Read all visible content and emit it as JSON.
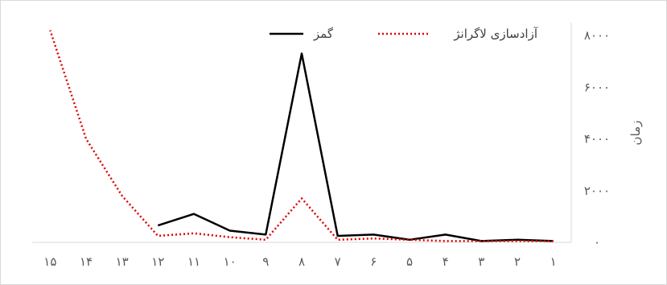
{
  "chart_data": {
    "type": "line",
    "x": [
      1,
      2,
      3,
      4,
      5,
      6,
      7,
      8,
      9,
      10,
      11,
      12,
      13,
      14,
      15
    ],
    "x_tick_labels": [
      "۱",
      "۲",
      "۳",
      "۴",
      "۵",
      "۶",
      "۷",
      "۸",
      "۹",
      "۱۰",
      "۱۱",
      "۱۲",
      "۱۳",
      "۱۴",
      "۱۵"
    ],
    "x_direction": "right-to-left",
    "series": [
      {
        "name": "گمز",
        "color": "#000000",
        "dash": "solid",
        "values": [
          50,
          100,
          50,
          300,
          100,
          300,
          250,
          7300,
          300,
          450,
          1100,
          650,
          null,
          null,
          null
        ]
      },
      {
        "name": "آزادسازی لاگرانژ",
        "color": "#e00000",
        "dash": "dotted",
        "values": [
          50,
          50,
          50,
          50,
          100,
          150,
          100,
          1700,
          100,
          200,
          350,
          250,
          1800,
          4000,
          8200
        ]
      }
    ],
    "ylabel": "زمان",
    "ylim": [
      0,
      8500
    ],
    "y_ticks": [
      0,
      2000,
      4000,
      6000,
      8000
    ],
    "y_tick_labels": [
      "۰",
      "۲۰۰۰",
      "۴۰۰۰",
      "۶۰۰۰",
      "۸۰۰۰"
    ],
    "y_axis_side": "right",
    "grid": false,
    "legend_position": "top"
  }
}
